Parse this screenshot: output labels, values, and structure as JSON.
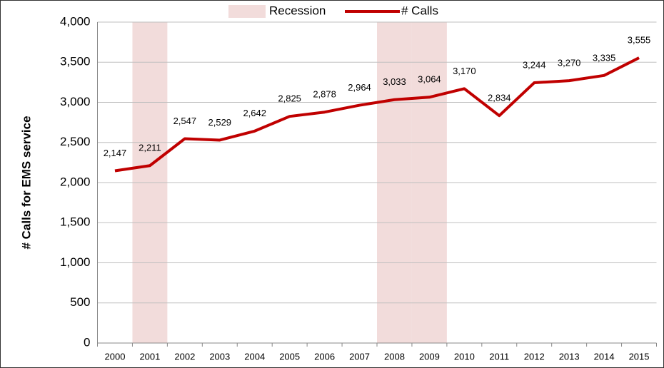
{
  "chart_data": {
    "type": "line",
    "y_label": "# Calls for EMS service",
    "categories": [
      "2000",
      "2001",
      "2002",
      "2003",
      "2004",
      "2005",
      "2006",
      "2007",
      "2008",
      "2009",
      "2010",
      "2011",
      "2012",
      "2013",
      "2014",
      "2015"
    ],
    "series": [
      {
        "name": "Recession",
        "type": "bar",
        "color": "#f2dcdb",
        "values": [
          null,
          4000,
          null,
          null,
          null,
          null,
          null,
          null,
          4000,
          4000,
          null,
          null,
          null,
          null,
          null,
          null
        ]
      },
      {
        "name": "# Calls",
        "type": "line",
        "color": "#c00000",
        "values": [
          2147,
          2211,
          2547,
          2529,
          2642,
          2825,
          2878,
          2964,
          3033,
          3064,
          3170,
          2834,
          3244,
          3270,
          3335,
          3555
        ],
        "value_labels": [
          "2,147",
          "2,211",
          "2,547",
          "2,529",
          "2,642",
          "2,825",
          "2,878",
          "2,964",
          "3,033",
          "3,064",
          "3,170",
          "2,834",
          "3,244",
          "3,270",
          "3,335",
          "3,555"
        ]
      }
    ],
    "ylim": [
      0,
      4000
    ],
    "yticks": [
      0,
      500,
      {
        "value": 1000,
        "label": "1,000"
      },
      {
        "value": 1500,
        "label": "1,500"
      },
      {
        "value": 2000,
        "label": "2,000"
      },
      {
        "value": 2500,
        "label": "2,500"
      },
      {
        "value": 3000,
        "label": "3,000"
      },
      {
        "value": 3500,
        "label": "3,500"
      },
      {
        "value": 4000,
        "label": "4,000"
      }
    ],
    "grid": true,
    "legend": "top"
  }
}
